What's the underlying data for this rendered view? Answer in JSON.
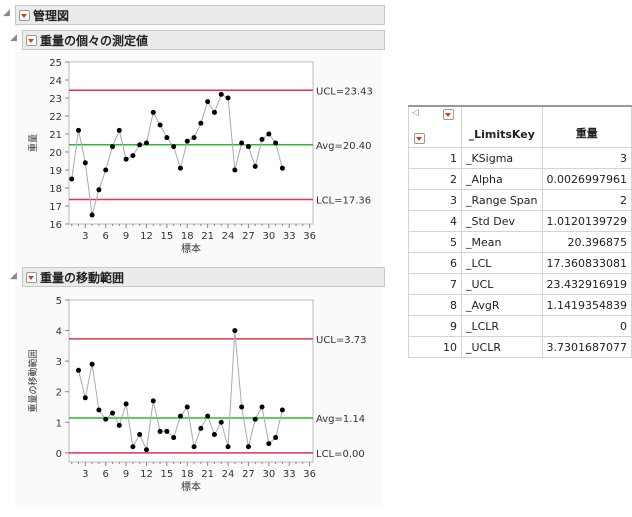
{
  "report": {
    "title": "管理図"
  },
  "chart1": {
    "title": "重量の個々の測定値"
  },
  "chart2": {
    "title": "重量の移動範囲"
  },
  "chart_data": [
    {
      "type": "line",
      "ylabel": "重量",
      "xlabel": "標本",
      "ylim": [
        16,
        25
      ],
      "yticks": [
        16,
        17,
        18,
        19,
        20,
        21,
        22,
        23,
        24,
        25
      ],
      "xlim": [
        0.6,
        36.5
      ],
      "xticks": [
        3,
        6,
        9,
        12,
        15,
        18,
        21,
        24,
        27,
        30,
        33,
        36
      ],
      "x": [
        1,
        2,
        3,
        4,
        5,
        6,
        7,
        8,
        9,
        10,
        11,
        12,
        13,
        14,
        15,
        16,
        17,
        18,
        19,
        20,
        21,
        22,
        23,
        24,
        25,
        26,
        27,
        28,
        29,
        30,
        31,
        32
      ],
      "values": [
        18.5,
        21.2,
        19.4,
        16.5,
        17.9,
        19.0,
        20.3,
        21.2,
        19.6,
        19.8,
        20.4,
        20.5,
        22.2,
        21.5,
        20.8,
        20.3,
        19.1,
        20.6,
        20.8,
        21.6,
        22.8,
        22.2,
        23.2,
        23.0,
        19.0,
        20.5,
        20.3,
        19.2,
        20.7,
        21.0,
        20.5,
        19.1
      ],
      "limits": [
        {
          "label": "UCL=23.43",
          "value": 23.43,
          "color": "#e8304a"
        },
        {
          "label": "Avg=20.40",
          "value": 20.4,
          "color": "#2db82d"
        },
        {
          "label": "LCL=17.36",
          "value": 17.36,
          "color": "#e8304a"
        }
      ]
    },
    {
      "type": "line",
      "ylabel": "重量の移動範囲",
      "xlabel": "標本",
      "ylim": [
        -0.3,
        5
      ],
      "yticks": [
        0,
        1,
        2,
        3,
        4,
        5
      ],
      "xlim": [
        0.6,
        36.5
      ],
      "xticks": [
        3,
        6,
        9,
        12,
        15,
        18,
        21,
        24,
        27,
        30,
        33,
        36
      ],
      "x": [
        2,
        3,
        4,
        5,
        6,
        7,
        8,
        9,
        10,
        11,
        12,
        13,
        14,
        15,
        16,
        17,
        18,
        19,
        20,
        21,
        22,
        23,
        24,
        25,
        26,
        27,
        28,
        29,
        30,
        31,
        32
      ],
      "values": [
        2.7,
        1.8,
        2.9,
        1.4,
        1.1,
        1.3,
        0.9,
        1.6,
        0.2,
        0.6,
        0.1,
        1.7,
        0.7,
        0.7,
        0.5,
        1.2,
        1.5,
        0.2,
        0.8,
        1.2,
        0.6,
        1.0,
        0.2,
        4.0,
        1.5,
        0.2,
        1.1,
        1.5,
        0.3,
        0.5,
        1.4
      ],
      "limits": [
        {
          "label": "UCL=3.73",
          "value": 3.73,
          "color": "#e8304a"
        },
        {
          "label": "Avg=1.14",
          "value": 1.14,
          "color": "#2db82d"
        },
        {
          "label": "LCL=0.00",
          "value": 0,
          "color": "#e8304a"
        }
      ]
    }
  ],
  "table": {
    "headers": [
      "",
      "_LimitsKey",
      "重量"
    ],
    "rows": [
      [
        "1",
        "_KSigma",
        "3"
      ],
      [
        "2",
        "_Alpha",
        "0.0026997961"
      ],
      [
        "3",
        "_Range Span",
        "2"
      ],
      [
        "4",
        "_Std Dev",
        "1.0120139729"
      ],
      [
        "5",
        "_Mean",
        "20.396875"
      ],
      [
        "6",
        "_LCL",
        "17.360833081"
      ],
      [
        "7",
        "_UCL",
        "23.432916919"
      ],
      [
        "8",
        "_AvgR",
        "1.1419354839"
      ],
      [
        "9",
        "_LCLR",
        "0"
      ],
      [
        "10",
        "_UCLR",
        "3.7301687077"
      ]
    ]
  }
}
